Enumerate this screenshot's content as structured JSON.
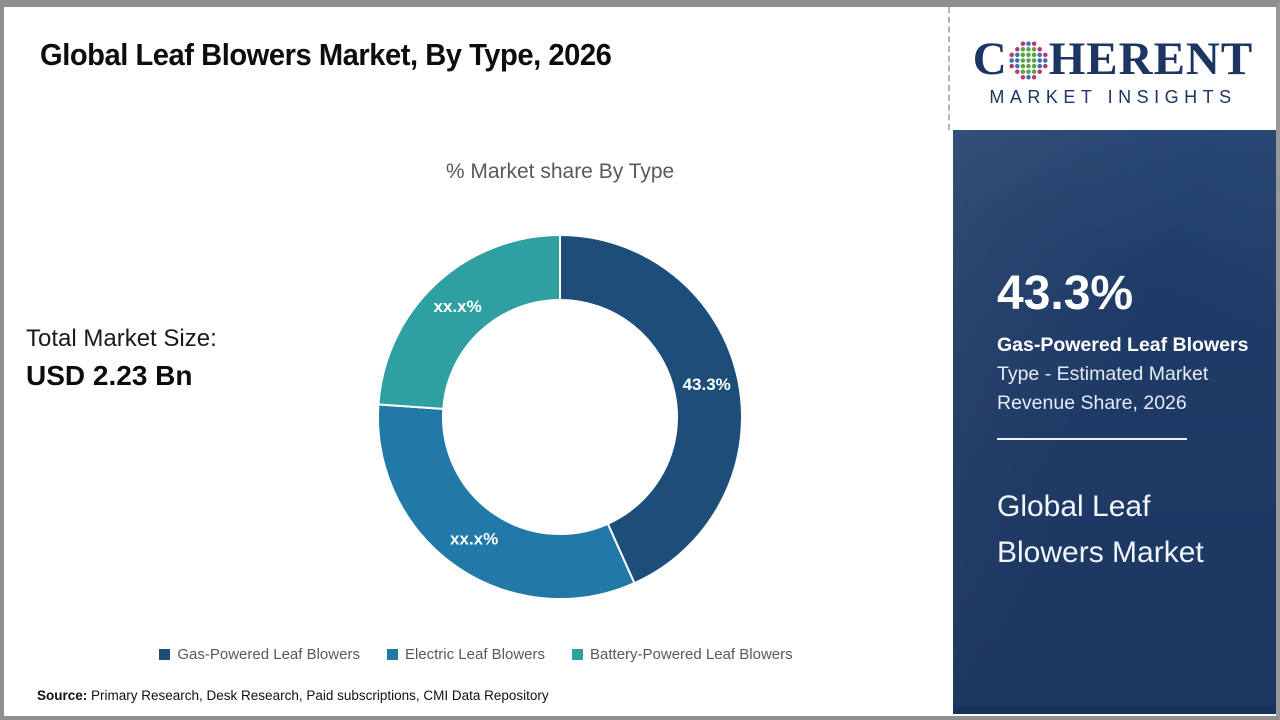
{
  "page_title": "Global Leaf Blowers Market, By Type, 2026",
  "chart": {
    "subtitle": "% Market share By Type"
  },
  "total_market": {
    "label": "Total Market Size:",
    "value": "USD 2.23 Bn"
  },
  "chart_data": {
    "type": "pie",
    "variant": "donut",
    "title": "% Market share By Type",
    "legend_position": "bottom",
    "start_angle_deg": 0,
    "direction": "clockwise",
    "segments": [
      {
        "label": "Gas-Powered Leaf Blowers",
        "display_value": "43.3%",
        "value_pct": 43.3,
        "color": "#1d4e79"
      },
      {
        "label": "Electric Leaf Blowers",
        "display_value": "xx.x%",
        "value_pct": 32.8,
        "color": "#2079a6"
      },
      {
        "label": "Battery-Powered Leaf Blowers",
        "display_value": "xx.x%",
        "value_pct": 23.9,
        "color": "#2fa0a1"
      }
    ]
  },
  "source": {
    "label": "Source:",
    "text": " Primary Research, Desk Research, Paid subscriptions, CMI Data Repository"
  },
  "sidebar": {
    "logo": {
      "prefix": "C",
      "suffix": "HERENT",
      "tagline": "MARKET INSIGHTS"
    },
    "highlight": {
      "value": "43.3%",
      "emphasis": "Gas-Powered Leaf Blowers",
      "description": " Type - Estimated Market Revenue Share, 2026"
    },
    "panel_title": "Global Leaf Blowers Market"
  },
  "colors": {
    "gas_powered": "#1d4e79",
    "electric": "#2079a6",
    "battery_powered": "#2fa0a1",
    "panel_navy": "#1e3a66",
    "logo_navy": "#1c3562",
    "legend_text": "#58595b"
  }
}
